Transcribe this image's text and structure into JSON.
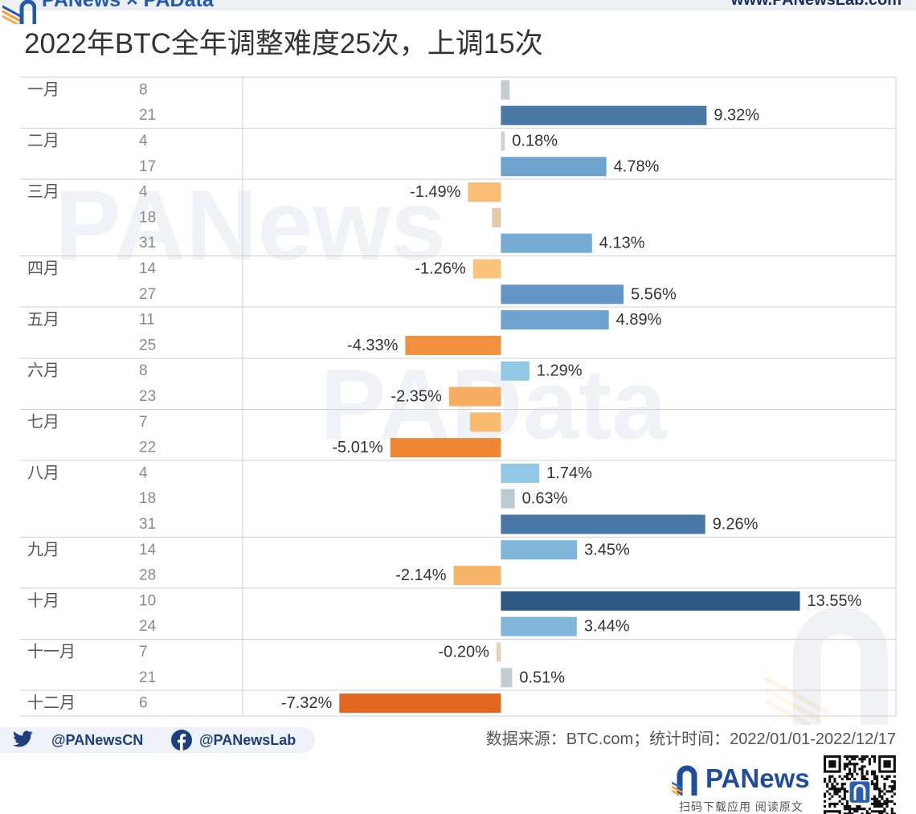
{
  "header": {
    "brand": "PANews × PAData",
    "website": "www.PANewsLab.com"
  },
  "watermarks": {
    "primary": "PANews",
    "secondary": "PAData"
  },
  "chart_data": {
    "type": "bar",
    "orientation": "horizontal",
    "title": "2022年BTC全年调整难度25次，上调15次",
    "xlim": [
      -11.7,
      17.9
    ],
    "grid": false,
    "groups": [
      {
        "month": "一月",
        "rows": [
          {
            "day": "8",
            "value": 0.4,
            "color": "#c5ced2"
          },
          {
            "day": "21",
            "value": 9.32,
            "label": "9.32%",
            "color": "#4a78a4"
          }
        ]
      },
      {
        "month": "二月",
        "rows": [
          {
            "day": "4",
            "value": 0.18,
            "label": "0.18%",
            "color": "#cfd4d6"
          },
          {
            "day": "17",
            "value": 4.78,
            "label": "4.78%",
            "color": "#6ea3ce"
          }
        ]
      },
      {
        "month": "三月",
        "rows": [
          {
            "day": "4",
            "value": -1.49,
            "label": "-1.49%",
            "color": "#f9bd73"
          },
          {
            "day": "18",
            "value": -0.4,
            "color": "#e3c8a9"
          },
          {
            "day": "31",
            "value": 4.13,
            "label": "4.13%",
            "color": "#76abd4"
          }
        ]
      },
      {
        "month": "四月",
        "rows": [
          {
            "day": "14",
            "value": -1.26,
            "label": "-1.26%",
            "color": "#fac47b"
          },
          {
            "day": "27",
            "value": 5.56,
            "label": "5.56%",
            "color": "#6497c6"
          }
        ]
      },
      {
        "month": "五月",
        "rows": [
          {
            "day": "11",
            "value": 4.89,
            "label": "4.89%",
            "color": "#6ea3ce"
          },
          {
            "day": "25",
            "value": -4.33,
            "label": "-4.33%",
            "color": "#f1913d"
          }
        ]
      },
      {
        "month": "六月",
        "rows": [
          {
            "day": "8",
            "value": 1.29,
            "label": "1.29%",
            "color": "#93c8e4"
          },
          {
            "day": "23",
            "value": -2.35,
            "label": "-2.35%",
            "color": "#f6ad62"
          }
        ]
      },
      {
        "month": "七月",
        "rows": [
          {
            "day": "7",
            "value": -1.4,
            "color": "#f8bb70"
          },
          {
            "day": "22",
            "value": -5.01,
            "label": "-5.01%",
            "color": "#ee8634"
          }
        ]
      },
      {
        "month": "八月",
        "rows": [
          {
            "day": "4",
            "value": 1.74,
            "label": "1.74%",
            "color": "#93c8e4"
          },
          {
            "day": "18",
            "value": 0.63,
            "label": "0.63%",
            "color": "#bdcad1"
          },
          {
            "day": "31",
            "value": 9.26,
            "label": "9.26%",
            "color": "#4a78a4"
          }
        ]
      },
      {
        "month": "九月",
        "rows": [
          {
            "day": "14",
            "value": 3.45,
            "label": "3.45%",
            "color": "#80b6da"
          },
          {
            "day": "28",
            "value": -2.14,
            "label": "-2.14%",
            "color": "#f7b468"
          }
        ]
      },
      {
        "month": "十月",
        "rows": [
          {
            "day": "10",
            "value": 13.55,
            "label": "13.55%",
            "color": "#2d5986"
          },
          {
            "day": "24",
            "value": 3.44,
            "label": "3.44%",
            "color": "#80b6da"
          }
        ]
      },
      {
        "month": "十一月",
        "rows": [
          {
            "day": "7",
            "value": -0.2,
            "label": "-0.20%",
            "color": "#e6d2ba"
          },
          {
            "day": "21",
            "value": 0.51,
            "label": "0.51%",
            "color": "#c1ccd1"
          }
        ]
      },
      {
        "month": "十二月",
        "rows": [
          {
            "day": "6",
            "value": -7.32,
            "label": "-7.32%",
            "color": "#e4671f"
          }
        ]
      }
    ]
  },
  "footer": {
    "twitter_icon": "twitter-icon",
    "twitter_handle": "@PANewsCN",
    "facebook_icon": "facebook-icon",
    "facebook_handle": "@PANewsLab",
    "source": "数据来源：BTC.com；统计时间：2022/01/01-2022/12/17"
  },
  "promo": {
    "logo_text": "PANews",
    "caption": "扫码下载应用 阅读原文"
  }
}
